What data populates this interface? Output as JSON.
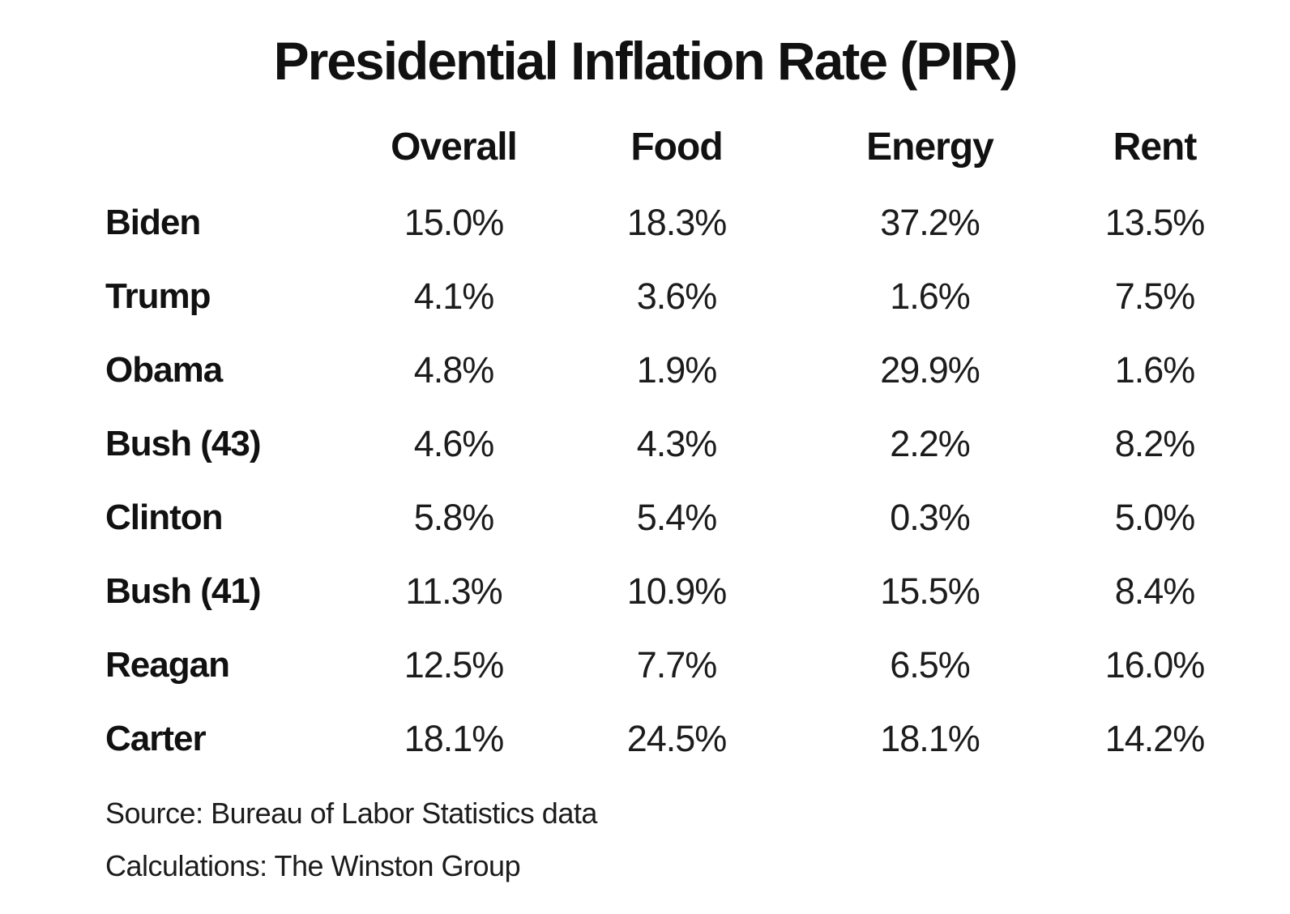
{
  "page": {
    "background": "#ffffff",
    "text_color": "#161616"
  },
  "chart_data": {
    "type": "table",
    "title": "Presidential Inflation Rate (PIR)",
    "columns": [
      "Overall",
      "Food",
      "Energy",
      "Rent"
    ],
    "rows": [
      {
        "label": "Biden",
        "values": [
          "15.0%",
          "18.3%",
          "37.2%",
          "13.5%"
        ]
      },
      {
        "label": "Trump",
        "values": [
          "4.1%",
          "3.6%",
          "1.6%",
          "7.5%"
        ]
      },
      {
        "label": "Obama",
        "values": [
          "4.8%",
          "1.9%",
          "29.9%",
          "1.6%"
        ]
      },
      {
        "label": "Bush  (43)",
        "values": [
          "4.6%",
          "4.3%",
          "2.2%",
          "8.2%"
        ]
      },
      {
        "label": "Clinton",
        "values": [
          "5.8%",
          "5.4%",
          "0.3%",
          "5.0%"
        ]
      },
      {
        "label": "Bush (41)",
        "values": [
          "11.3%",
          "10.9%",
          "15.5%",
          "8.4%"
        ]
      },
      {
        "label": "Reagan",
        "values": [
          "12.5%",
          "7.7%",
          "6.5%",
          "16.0%"
        ]
      },
      {
        "label": "Carter",
        "values": [
          "18.1%",
          "24.5%",
          "18.1%",
          "14.2%"
        ]
      }
    ],
    "footer": {
      "source": "Source: Bureau of Labor Statistics data",
      "calculations": "Calculations: The Winston Group"
    }
  }
}
